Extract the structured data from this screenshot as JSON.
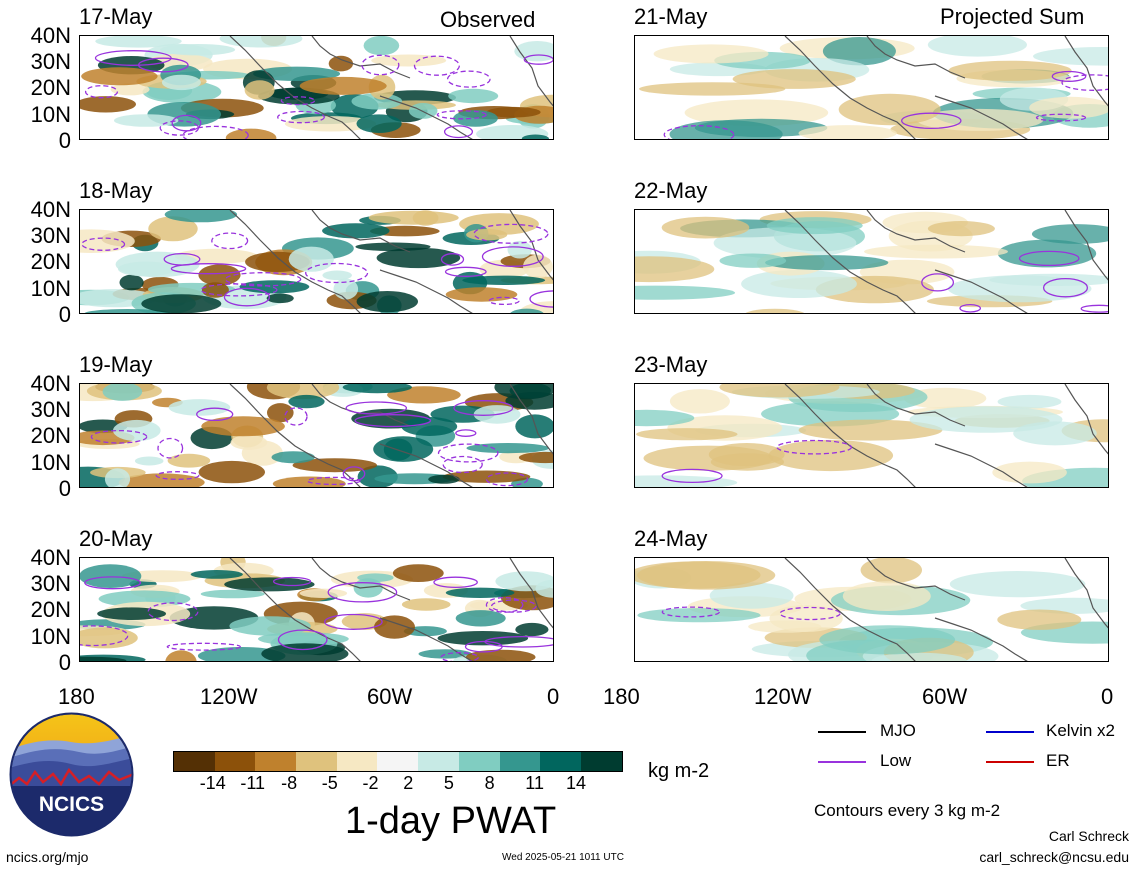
{
  "header": {
    "left_title": "Observed",
    "right_title": "Projected Sum"
  },
  "panels_left": [
    {
      "date": "17-May"
    },
    {
      "date": "18-May"
    },
    {
      "date": "19-May"
    },
    {
      "date": "20-May"
    }
  ],
  "panels_right": [
    {
      "date": "21-May"
    },
    {
      "date": "22-May"
    },
    {
      "date": "23-May"
    },
    {
      "date": "24-May"
    }
  ],
  "axes": {
    "y_ticks": [
      "40N",
      "30N",
      "20N",
      "10N",
      "0"
    ],
    "x_ticks": [
      "180",
      "120W",
      "60W",
      "0"
    ]
  },
  "colorbar": {
    "labels": [
      "-14",
      "-11",
      "-8",
      "-5",
      "-2",
      "2",
      "5",
      "8",
      "11",
      "14"
    ],
    "unit": "kg m-2",
    "colors": [
      "#543005",
      "#8c510a",
      "#bf812d",
      "#dfc27d",
      "#f6e8c3",
      "#f5f5f5",
      "#c7eae5",
      "#80cdc1",
      "#35978f",
      "#01665e",
      "#003c30"
    ],
    "title": "1-day PWAT"
  },
  "legend": {
    "items": [
      {
        "label": "MJO",
        "color": "#000000"
      },
      {
        "label": "Kelvin x2",
        "color": "#0000cc"
      },
      {
        "label": "Low",
        "color": "#9933dd"
      },
      {
        "label": "ER",
        "color": "#cc0000"
      }
    ],
    "note": "Contours every 3 kg m-2"
  },
  "logo": {
    "text": "NCICS"
  },
  "footer": {
    "site": "ncics.org/mjo",
    "timestamp": "Wed 2025-05-21 1011 UTC",
    "author": "Carl Schreck",
    "email": "carl_schreck@ncsu.edu"
  }
}
